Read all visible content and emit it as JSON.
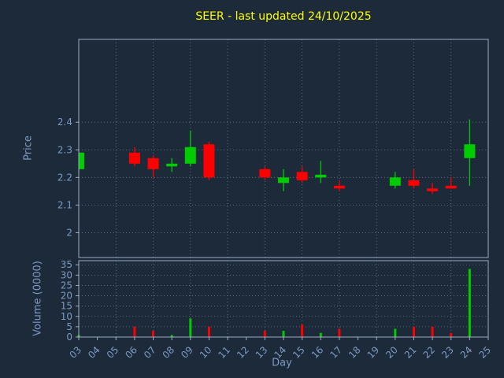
{
  "figure": {
    "title": "SEER - last updated 24/10/2025",
    "xlabel": "Day"
  },
  "colors": {
    "background": "#1c2a3a",
    "title": "#ffff00",
    "axis_text": "#7e9ac0",
    "spine": "#9bafc3",
    "grid": "#aebfcf",
    "up": "#00cc00",
    "down": "#ff0000"
  },
  "chart_data": [
    {
      "type": "candlestick",
      "title": "SEER - last updated 24/10/2025",
      "ylabel": "Price",
      "xlabel": "Day",
      "xlim": [
        3,
        25
      ],
      "ylim": [
        1.91,
        2.7
      ],
      "y_ticks": {
        "values": [
          2.0,
          2.1,
          2.2,
          2.3,
          2.4
        ],
        "labels": [
          "2",
          "2.1",
          "2.2",
          "2.3",
          "2.4"
        ]
      },
      "x_grid_days": [
        3,
        5,
        7,
        9,
        11,
        13,
        15,
        17,
        19,
        21,
        23,
        25
      ],
      "x_tick_labels": [
        "03",
        "04",
        "05",
        "06",
        "07",
        "08",
        "09",
        "10",
        "11",
        "12",
        "13",
        "14",
        "15",
        "16",
        "17",
        "18",
        "19",
        "20",
        "21",
        "22",
        "23",
        "24",
        "25"
      ],
      "grid": true,
      "candles": [
        {
          "day": 3,
          "open": 2.23,
          "high": 2.29,
          "low": 2.22,
          "close": 2.29
        },
        {
          "day": 6,
          "open": 2.29,
          "high": 2.31,
          "low": 2.24,
          "close": 2.25
        },
        {
          "day": 7,
          "open": 2.27,
          "high": 2.28,
          "low": 2.2,
          "close": 2.23
        },
        {
          "day": 8,
          "open": 2.24,
          "high": 2.27,
          "low": 2.22,
          "close": 2.25
        },
        {
          "day": 9,
          "open": 2.25,
          "high": 2.37,
          "low": 2.24,
          "close": 2.31
        },
        {
          "day": 10,
          "open": 2.32,
          "high": 2.33,
          "low": 2.19,
          "close": 2.2
        },
        {
          "day": 13,
          "open": 2.23,
          "high": 2.24,
          "low": 2.19,
          "close": 2.2
        },
        {
          "day": 14,
          "open": 2.18,
          "high": 2.23,
          "low": 2.15,
          "close": 2.2
        },
        {
          "day": 15,
          "open": 2.22,
          "high": 2.24,
          "low": 2.18,
          "close": 2.19
        },
        {
          "day": 16,
          "open": 2.2,
          "high": 2.26,
          "low": 2.18,
          "close": 2.21
        },
        {
          "day": 17,
          "open": 2.17,
          "high": 2.19,
          "low": 2.15,
          "close": 2.16
        },
        {
          "day": 20,
          "open": 2.17,
          "high": 2.22,
          "low": 2.16,
          "close": 2.2
        },
        {
          "day": 21,
          "open": 2.19,
          "high": 2.23,
          "low": 2.16,
          "close": 2.17
        },
        {
          "day": 22,
          "open": 2.16,
          "high": 2.18,
          "low": 2.14,
          "close": 2.15
        },
        {
          "day": 23,
          "open": 2.17,
          "high": 2.2,
          "low": 2.16,
          "close": 2.16
        },
        {
          "day": 24,
          "open": 2.27,
          "high": 2.41,
          "low": 2.17,
          "close": 2.32
        }
      ]
    },
    {
      "type": "bar",
      "ylabel": "Volume (0000)",
      "xlim": [
        3,
        25
      ],
      "ylim": [
        0,
        37
      ],
      "y_ticks": {
        "values": [
          0,
          5,
          10,
          15,
          20,
          25,
          30,
          35
        ],
        "labels": [
          "0",
          "5",
          "10",
          "15",
          "20",
          "25",
          "30",
          "35"
        ]
      },
      "grid": true,
      "bars": [
        {
          "day": 3,
          "value": 1,
          "dir": "up"
        },
        {
          "day": 6,
          "value": 5,
          "dir": "down"
        },
        {
          "day": 7,
          "value": 3,
          "dir": "down"
        },
        {
          "day": 8,
          "value": 1,
          "dir": "up"
        },
        {
          "day": 9,
          "value": 9,
          "dir": "up"
        },
        {
          "day": 10,
          "value": 5,
          "dir": "down"
        },
        {
          "day": 13,
          "value": 3,
          "dir": "down"
        },
        {
          "day": 14,
          "value": 3,
          "dir": "up"
        },
        {
          "day": 15,
          "value": 6,
          "dir": "down"
        },
        {
          "day": 16,
          "value": 2,
          "dir": "up"
        },
        {
          "day": 17,
          "value": 4,
          "dir": "down"
        },
        {
          "day": 20,
          "value": 4,
          "dir": "up"
        },
        {
          "day": 21,
          "value": 5,
          "dir": "down"
        },
        {
          "day": 22,
          "value": 5,
          "dir": "down"
        },
        {
          "day": 23,
          "value": 2,
          "dir": "down"
        },
        {
          "day": 24,
          "value": 33,
          "dir": "up"
        }
      ]
    }
  ]
}
